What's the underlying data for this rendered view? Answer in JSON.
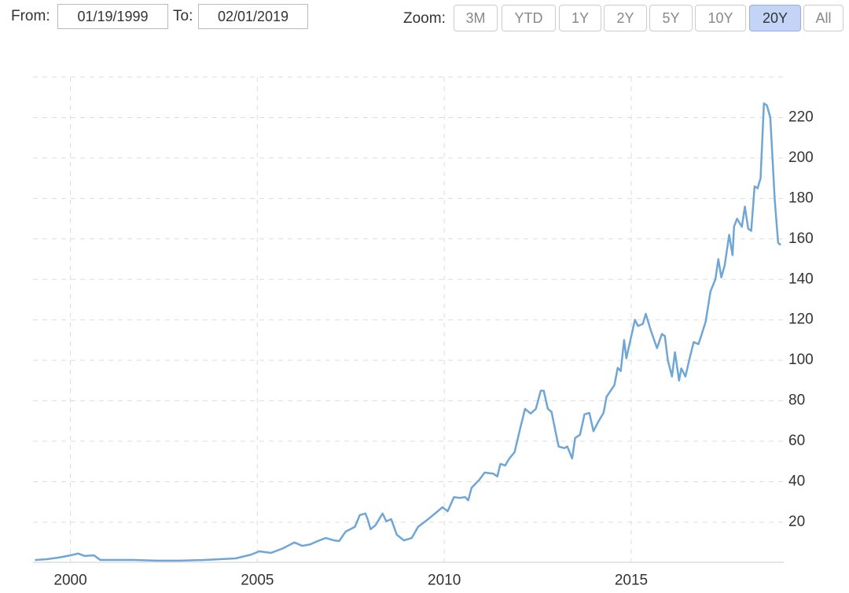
{
  "controls": {
    "from_label": "From:",
    "from": "01/19/1999",
    "to_label": "To:",
    "to": "02/01/2019",
    "zoom_label": "Zoom:",
    "zoom_buttons": [
      "3M",
      "YTD",
      "1Y",
      "2Y",
      "5Y",
      "10Y",
      "20Y",
      "All"
    ],
    "active_zoom": "20Y"
  },
  "chart_data": {
    "type": "line",
    "color": "#6fa6d6",
    "x": [
      1999.05,
      1999.37,
      1999.68,
      2000.0,
      2000.21,
      2000.38,
      2000.63,
      2000.8,
      2001.05,
      2001.68,
      2002.31,
      2002.94,
      2003.58,
      2004.42,
      2004.84,
      2005.05,
      2005.36,
      2005.68,
      2005.99,
      2006.2,
      2006.41,
      2006.62,
      2006.83,
      2007.05,
      2007.19,
      2007.36,
      2007.61,
      2007.74,
      2007.89,
      2007.95,
      2008.03,
      2008.16,
      2008.35,
      2008.45,
      2008.58,
      2008.73,
      2008.92,
      2009.13,
      2009.3,
      2009.57,
      2009.78,
      2009.95,
      2010.09,
      2010.26,
      2010.41,
      2010.56,
      2010.64,
      2010.73,
      2010.94,
      2011.08,
      2011.31,
      2011.42,
      2011.5,
      2011.63,
      2011.74,
      2011.88,
      2012.03,
      2012.16,
      2012.31,
      2012.45,
      2012.58,
      2012.66,
      2012.77,
      2012.87,
      2012.98,
      2013.06,
      2013.21,
      2013.29,
      2013.42,
      2013.5,
      2013.63,
      2013.75,
      2013.88,
      2013.99,
      2014.13,
      2014.26,
      2014.34,
      2014.45,
      2014.55,
      2014.64,
      2014.72,
      2014.81,
      2014.87,
      2014.99,
      2015.1,
      2015.18,
      2015.31,
      2015.39,
      2015.52,
      2015.69,
      2015.82,
      2015.9,
      2015.98,
      2016.09,
      2016.17,
      2016.28,
      2016.34,
      2016.45,
      2016.55,
      2016.67,
      2016.8,
      2016.87,
      2016.99,
      2017.12,
      2017.25,
      2017.33,
      2017.41,
      2017.5,
      2017.62,
      2017.71,
      2017.75,
      2017.83,
      2017.96,
      2018.04,
      2018.13,
      2018.21,
      2018.3,
      2018.38,
      2018.46,
      2018.55,
      2018.63,
      2018.72,
      2018.84,
      2018.93,
      2019.0
    ],
    "values": [
      1.3,
      1.7,
      2.5,
      3.6,
      4.5,
      3.3,
      3.6,
      1.3,
      1.3,
      1.3,
      1.0,
      1.0,
      1.3,
      2.1,
      4.0,
      5.6,
      4.8,
      7.0,
      10.0,
      8.3,
      9.0,
      10.7,
      12.2,
      11.0,
      10.7,
      15.3,
      17.7,
      23.5,
      24.3,
      21.5,
      16.5,
      18.5,
      24.3,
      20.4,
      21.5,
      13.8,
      11.0,
      12.2,
      17.7,
      21.5,
      24.7,
      27.4,
      25.4,
      32.4,
      32.0,
      32.4,
      30.8,
      37.0,
      41.0,
      44.5,
      44.0,
      42.6,
      48.8,
      48.0,
      51.5,
      54.6,
      66.3,
      76.0,
      73.7,
      76.0,
      85.0,
      85.0,
      76.0,
      74.5,
      64.3,
      57.4,
      56.6,
      57.4,
      51.5,
      61.6,
      63.2,
      73.3,
      74.0,
      65.0,
      70.0,
      74.0,
      82.0,
      85.0,
      87.7,
      96.3,
      94.7,
      110.0,
      101.0,
      111.0,
      120.0,
      117.0,
      118.0,
      123.0,
      115.0,
      106.0,
      113.0,
      112.0,
      100.0,
      92.0,
      104.0,
      90.0,
      96.0,
      92.0,
      100.0,
      109.0,
      108.0,
      112.0,
      119.0,
      134.0,
      140.0,
      150.0,
      141.0,
      147.0,
      162.0,
      152.0,
      166.0,
      170.0,
      166.0,
      176.0,
      165.0,
      164.0,
      186.0,
      185.0,
      190.0,
      227.0,
      226.0,
      220.0,
      179.0,
      158.0,
      157.0
    ],
    "xlim": [
      1999.0,
      2019.08
    ],
    "xticks": [
      2000,
      2005,
      2010,
      2015
    ],
    "ylim": [
      0,
      240
    ],
    "yticks": [
      20,
      40,
      60,
      80,
      100,
      120,
      140,
      160,
      180,
      200,
      220
    ],
    "grid": true,
    "y_axis_side": "right"
  }
}
